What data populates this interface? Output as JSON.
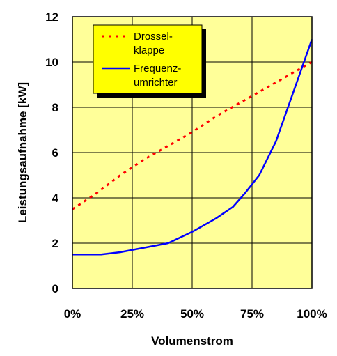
{
  "chart_data": {
    "type": "line",
    "xlabel": "Volumenstrom",
    "ylabel": "Leistungsaufnahme [kW]",
    "xlim": [
      0,
      100
    ],
    "ylim": [
      0,
      12
    ],
    "x_ticks": [
      0,
      25,
      50,
      75,
      100
    ],
    "x_tick_labels": [
      "0%",
      "25%",
      "50%",
      "75%",
      "100%"
    ],
    "y_ticks": [
      0,
      2,
      4,
      6,
      8,
      10,
      12
    ],
    "y_tick_labels": [
      "0",
      "2",
      "4",
      "6",
      "8",
      "10",
      "12"
    ],
    "grid": true,
    "legend_position": "top-left",
    "plot_background": "#FFFF99",
    "legend": [
      {
        "series": 0,
        "lines": [
          "Drossel-",
          "klappe"
        ]
      },
      {
        "series": 1,
        "lines": [
          "Frequenz-",
          "umrichter"
        ]
      }
    ],
    "series": [
      {
        "name": "Drosselklappe",
        "color": "#FF0000",
        "style": "dashed",
        "x": [
          0,
          10,
          20,
          30,
          40,
          50,
          60,
          70,
          80,
          90,
          100
        ],
        "y": [
          3.5,
          4.2,
          5.0,
          5.7,
          6.3,
          6.9,
          7.6,
          8.2,
          8.8,
          9.4,
          10.0
        ]
      },
      {
        "name": "Frequenzumrichter",
        "color": "#0000FF",
        "style": "solid",
        "x": [
          0,
          5,
          12,
          20,
          30,
          40,
          50,
          60,
          67,
          72,
          78,
          85,
          90,
          95,
          100
        ],
        "y": [
          1.5,
          1.5,
          1.5,
          1.6,
          1.8,
          2.0,
          2.5,
          3.1,
          3.6,
          4.2,
          5.0,
          6.5,
          8.0,
          9.5,
          11.0
        ]
      }
    ]
  }
}
